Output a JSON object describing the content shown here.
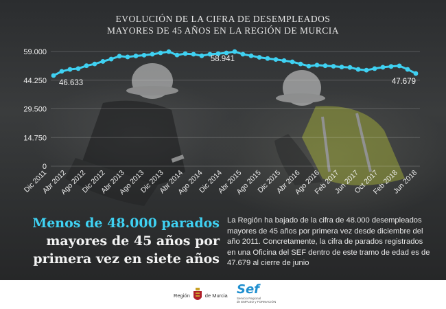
{
  "header": {
    "title_line1": "EVOLUCIÓN DE LA CIFRA DE DESEMPLEADOS",
    "title_line2": "MAYORES DE 45 AÑOS EN LA REGIÓN DE MURCIA"
  },
  "chart_data": {
    "type": "line",
    "title": "EVOLUCIÓN DE LA CIFRA DE DESEMPLEADOS MAYORES DE 45 AÑOS EN LA REGIÓN DE MURCIA",
    "xlabel": "",
    "ylabel": "",
    "ylim": [
      0,
      59000
    ],
    "yticks": [
      0,
      14750,
      29500,
      44250,
      59000
    ],
    "ytick_labels": [
      "0",
      "14.750",
      "29.500",
      "44.250",
      "59.000"
    ],
    "x_tick_labels": [
      "Dic 2011",
      "Abr 2012",
      "Ago 2012",
      "Dic 2012",
      "Abr 2013",
      "Ago 2013",
      "Dic 2013",
      "Abr 2014",
      "Ago 2014",
      "Dic 2014",
      "Abr 2015",
      "Ago 2015",
      "Dic 2015",
      "Abr 2016",
      "Ago 2016",
      "Feb 2017",
      "Jun 2017",
      "Oct 2017",
      "Feb 2018",
      "Jun 2018"
    ],
    "grid": true,
    "line_color": "#3fd1f2",
    "series": [
      {
        "name": "",
        "values": [
          46633,
          48800,
          49800,
          50200,
          51700,
          52600,
          53900,
          55100,
          56600,
          56200,
          56700,
          57100,
          57600,
          58300,
          58900,
          57200,
          57900,
          57600,
          56800,
          57600,
          57900,
          58300,
          58941,
          57600,
          56800,
          56000,
          55400,
          54900,
          54300,
          53700,
          52600,
          51500,
          52000,
          51700,
          51400,
          51000,
          50800,
          49800,
          49400,
          50200,
          50900,
          51300,
          51600,
          49800,
          47679
        ]
      }
    ],
    "annotations": [
      {
        "label": "46.633",
        "value": 46633
      },
      {
        "label": "58.941",
        "value": 58941
      },
      {
        "label": "47.679",
        "value": 47679
      }
    ]
  },
  "headline": {
    "line1": "Menos de 48.000 parados",
    "line2": "mayores de 45 años por",
    "line3": "primera vez en siete años"
  },
  "body": {
    "text": "La Región ha bajado de la cifra de 48.000 desempleados mayores de 45 años por primera vez desde diciembre del año 2011. Concretamente, la cifra de parados registrados en una Oficina del SEF dentro de este tramo de edad es de 47.679 al cierre de junio"
  },
  "footer": {
    "murcia_logo_text_left": "Región",
    "murcia_logo_text_right": "de Murcia",
    "sef_word": "Sef",
    "sef_subtitle_line1": "Servicio Regional",
    "sef_subtitle_line2": "de EMPLEO y FORMACIÓN"
  },
  "colors": {
    "accent": "#3fd1f2",
    "background": "#2e3031",
    "sef_blue": "#1f8fcf",
    "murcia_red": "#b0202a"
  }
}
